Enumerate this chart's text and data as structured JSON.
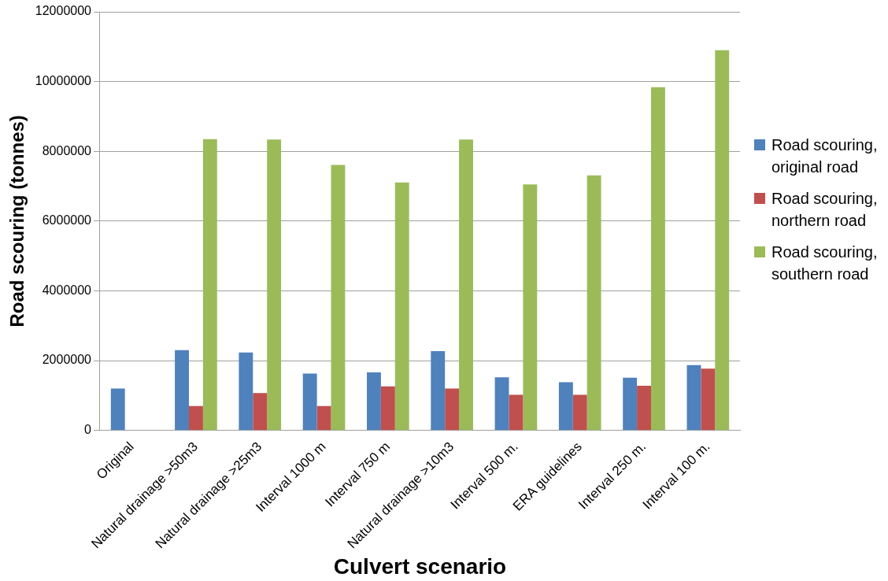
{
  "chart_data": {
    "type": "bar",
    "xlabel": "Culvert scenario",
    "ylabel": "Road scouring (tonnes)",
    "categories": [
      "Original",
      "Natural drainage >50m3",
      "Natural drainage >25m3",
      "Interval 1000 m",
      "Interval 750 m",
      "Natural drainage >10m3",
      "Interval 500 m.",
      "ERA guidelines",
      "Interval 250 m.",
      "Interval 100 m."
    ],
    "series": [
      {
        "name": "Road scouring, original road",
        "color": "#4f81bd",
        "values": [
          1200000,
          2300000,
          2230000,
          1630000,
          1660000,
          2270000,
          1520000,
          1380000,
          1510000,
          1870000
        ]
      },
      {
        "name": "Road scouring, northern road",
        "color": "#c0504d",
        "values": [
          null,
          700000,
          1070000,
          700000,
          1260000,
          1200000,
          1020000,
          1020000,
          1280000,
          1770000
        ]
      },
      {
        "name": "Road scouring, southern road",
        "color": "#9bbb59",
        "values": [
          null,
          8350000,
          8340000,
          7610000,
          7110000,
          8340000,
          7050000,
          7310000,
          9840000,
          10900000
        ]
      }
    ],
    "ylim": [
      0,
      12000000
    ],
    "yticks": [
      0,
      2000000,
      4000000,
      6000000,
      8000000,
      10000000,
      12000000
    ],
    "grid": "y",
    "legend": "right"
  }
}
